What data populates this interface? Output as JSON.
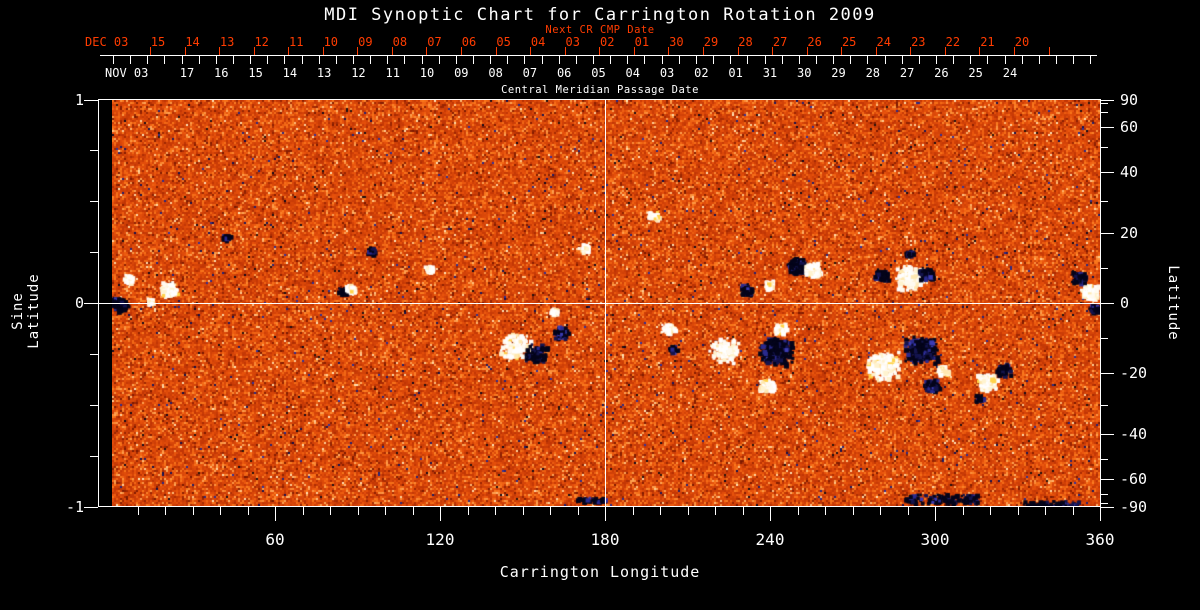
{
  "title": "MDI Synoptic Chart for Carrington Rotation 2009",
  "colors": {
    "background": "#000000",
    "foreground": "#ffffff",
    "next_cr_accent": "#ff3c00",
    "grid_line": "#ffffff"
  },
  "top_axes": {
    "next_cr_label": "Next CR CMP Date",
    "next_cr_month": "DEC 03",
    "next_cr_days": [
      "15",
      "14",
      "13",
      "12",
      "11",
      "10",
      "09",
      "08",
      "07",
      "06",
      "05",
      "04",
      "03",
      "02",
      "01",
      "30",
      "29",
      "28",
      "27",
      "26",
      "25",
      "24",
      "23",
      "22",
      "21",
      "20"
    ],
    "cmp_label": "Central Meridian Passage Date",
    "cmp_month": "NOV 03",
    "cmp_days": [
      "17",
      "16",
      "15",
      "14",
      "13",
      "12",
      "11",
      "10",
      "09",
      "08",
      "07",
      "06",
      "05",
      "04",
      "03",
      "02",
      "01",
      "31",
      "30",
      "29",
      "28",
      "27",
      "26",
      "25",
      "24"
    ]
  },
  "axes": {
    "left": {
      "title": "Sine Latitude",
      "tick_labels": [
        "1",
        "0",
        "-1"
      ]
    },
    "right": {
      "title": "Latitude",
      "tick_labels": [
        "90",
        "60",
        "40",
        "20",
        "0",
        "-20",
        "-40",
        "-60",
        "-90"
      ]
    },
    "bottom": {
      "title": "Carrington Longitude",
      "tick_labels": [
        "60",
        "120",
        "180",
        "240",
        "300",
        "360"
      ]
    }
  },
  "chart_data": {
    "type": "heatmap",
    "title": "MDI Synoptic Chart for Carrington Rotation 2009",
    "xlabel": "Carrington Longitude",
    "ylabel_left": "Sine Latitude",
    "ylabel_right": "Latitude",
    "x_range": [
      0,
      360
    ],
    "x_major_ticks": [
      60,
      120,
      180,
      240,
      300,
      360
    ],
    "x_minor_step": 10,
    "y_range_sine_latitude": [
      -1,
      1
    ],
    "y_left_labeled_ticks": [
      1,
      0,
      -1
    ],
    "y_left_minor_step": 0.25,
    "y_right_labeled_ticks": [
      90,
      60,
      40,
      20,
      0,
      -20,
      -40,
      -60,
      -90
    ],
    "y_right_minor_step_deg": 10,
    "grid_lines": {
      "vertical_at_longitude": 180,
      "horizontal_at_sine_latitude": 0
    },
    "background_palette": [
      "#8c1e00",
      "#c03505",
      "#e8520c",
      "#fb7a1e",
      "#ffa95a",
      "#ffd79e",
      "#fff6e3"
    ],
    "speckle_colors": {
      "negative_navy": "#1c1870",
      "positive_cream": "#ffe9bc"
    },
    "positive_polarity_color": "#ffffff",
    "negative_polarity_color": "#04041a",
    "active_regions": [
      {
        "lon": 2.9,
        "sine_lat": 0.0,
        "polarity": "negative",
        "size": 9,
        "style": "cluster"
      },
      {
        "lon": 6.2,
        "sine_lat": 0.126,
        "polarity": "positive",
        "size": 5,
        "style": "cluster"
      },
      {
        "lon": 14.5,
        "sine_lat": 0.012,
        "polarity": "positive",
        "size": 4,
        "style": "cluster"
      },
      {
        "lon": 21.1,
        "sine_lat": 0.072,
        "polarity": "positive",
        "size": 9,
        "style": "cluster"
      },
      {
        "lon": 41.8,
        "sine_lat": 0.328,
        "polarity": "negative",
        "size": 4,
        "style": "cluster"
      },
      {
        "lon": 84.4,
        "sine_lat": 0.062,
        "polarity": "negative",
        "size": 5,
        "style": "cluster"
      },
      {
        "lon": 87.3,
        "sine_lat": 0.077,
        "polarity": "positive",
        "size": 5,
        "style": "cluster"
      },
      {
        "lon": 94.5,
        "sine_lat": 0.259,
        "polarity": "negative",
        "size": 5,
        "style": "cluster"
      },
      {
        "lon": 115.6,
        "sine_lat": 0.175,
        "polarity": "positive",
        "size": 4,
        "style": "cluster"
      },
      {
        "lon": 147.3,
        "sine_lat": -0.21,
        "polarity": "positive",
        "size": 16,
        "style": "cluster"
      },
      {
        "lon": 154.5,
        "sine_lat": -0.244,
        "polarity": "negative",
        "size": 11,
        "style": "cluster"
      },
      {
        "lon": 163.6,
        "sine_lat": -0.141,
        "polarity": "negative",
        "size": 7,
        "style": "cluster"
      },
      {
        "lon": 161.1,
        "sine_lat": -0.037,
        "polarity": "positive",
        "size": 4,
        "style": "cluster"
      },
      {
        "lon": 172.0,
        "sine_lat": 0.274,
        "polarity": "positive",
        "size": 5,
        "style": "cluster"
      },
      {
        "lon": 197.1,
        "sine_lat": 0.432,
        "polarity": "positive",
        "size": 6,
        "style": "cluster"
      },
      {
        "lon": 202.5,
        "sine_lat": -0.121,
        "polarity": "positive",
        "size": 7,
        "style": "cluster"
      },
      {
        "lon": 204.4,
        "sine_lat": -0.22,
        "polarity": "negative",
        "size": 4,
        "style": "cluster"
      },
      {
        "lon": 230.9,
        "sine_lat": 0.072,
        "polarity": "negative",
        "size": 6,
        "style": "cluster"
      },
      {
        "lon": 239.3,
        "sine_lat": 0.096,
        "polarity": "positive",
        "size": 5,
        "style": "cluster"
      },
      {
        "lon": 249.1,
        "sine_lat": 0.19,
        "polarity": "negative",
        "size": 9,
        "style": "solid"
      },
      {
        "lon": 255.3,
        "sine_lat": 0.17,
        "polarity": "positive",
        "size": 8,
        "style": "solid"
      },
      {
        "lon": 222.5,
        "sine_lat": -0.225,
        "polarity": "positive",
        "size": 15,
        "style": "cluster"
      },
      {
        "lon": 241.8,
        "sine_lat": -0.225,
        "polarity": "negative",
        "size": 17,
        "style": "solid"
      },
      {
        "lon": 243.3,
        "sine_lat": -0.121,
        "polarity": "positive",
        "size": 6,
        "style": "solid"
      },
      {
        "lon": 238.2,
        "sine_lat": -0.398,
        "polarity": "positive",
        "size": 8,
        "style": "cluster"
      },
      {
        "lon": 290.2,
        "sine_lat": 0.131,
        "polarity": "positive",
        "size": 14,
        "style": "solid"
      },
      {
        "lon": 280.0,
        "sine_lat": 0.141,
        "polarity": "negative",
        "size": 7,
        "style": "solid"
      },
      {
        "lon": 296.7,
        "sine_lat": 0.146,
        "polarity": "negative",
        "size": 8,
        "style": "solid"
      },
      {
        "lon": 290.2,
        "sine_lat": 0.249,
        "polarity": "negative",
        "size": 4,
        "style": "cluster"
      },
      {
        "lon": 280.7,
        "sine_lat": -0.299,
        "polarity": "positive",
        "size": 16,
        "style": "solid"
      },
      {
        "lon": 294.5,
        "sine_lat": -0.225,
        "polarity": "negative",
        "size": 16,
        "style": "solid"
      },
      {
        "lon": 298.2,
        "sine_lat": -0.398,
        "polarity": "negative",
        "size": 8,
        "style": "solid"
      },
      {
        "lon": 302.5,
        "sine_lat": -0.323,
        "polarity": "positive",
        "size": 6,
        "style": "cluster"
      },
      {
        "lon": 318.5,
        "sine_lat": -0.383,
        "polarity": "positive",
        "size": 10,
        "style": "solid"
      },
      {
        "lon": 324.4,
        "sine_lat": -0.323,
        "polarity": "negative",
        "size": 7,
        "style": "solid"
      },
      {
        "lon": 315.6,
        "sine_lat": -0.462,
        "polarity": "negative",
        "size": 4,
        "style": "cluster"
      },
      {
        "lon": 355.6,
        "sine_lat": 0.062,
        "polarity": "positive",
        "size": 9,
        "style": "solid"
      },
      {
        "lon": 352.0,
        "sine_lat": 0.131,
        "polarity": "negative",
        "size": 7,
        "style": "solid"
      },
      {
        "lon": 357.5,
        "sine_lat": -0.022,
        "polarity": "negative",
        "size": 5,
        "style": "cluster"
      },
      {
        "lon": 301.8,
        "sine_lat": -0.956,
        "polarity": "negative",
        "size": 13,
        "style": "band"
      },
      {
        "lon": 341.8,
        "sine_lat": -0.985,
        "polarity": "negative",
        "size": 10,
        "style": "band"
      },
      {
        "lon": 174.5,
        "sine_lat": -0.96,
        "polarity": "negative",
        "size": 5,
        "style": "band"
      }
    ]
  }
}
